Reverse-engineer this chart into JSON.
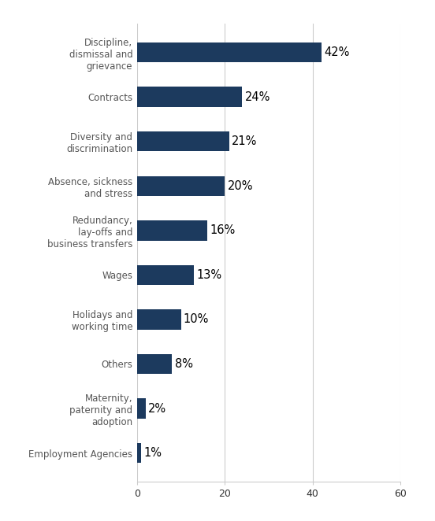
{
  "categories": [
    "Employment Agencies",
    "Maternity,\npaternity and\nadoption",
    "Others",
    "Holidays and\nworking time",
    "Wages",
    "Redundancy,\nlay-offs and\nbusiness transfers",
    "Absence, sickness\nand stress",
    "Diversity and\ndiscrimination",
    "Contracts",
    "Discipline,\ndismissal and\ngrievance"
  ],
  "values": [
    1,
    2,
    8,
    10,
    13,
    16,
    20,
    21,
    24,
    42
  ],
  "bar_color": "#1c3a5e",
  "label_color": "#555555",
  "background_color": "#ffffff",
  "plot_background": "#ffffff",
  "grid_color": "#cccccc",
  "xlim": [
    0,
    60
  ],
  "xticks": [
    0,
    20,
    40,
    60
  ],
  "bar_height": 0.45,
  "figsize": [
    5.52,
    6.62
  ],
  "dpi": 100,
  "label_fontsize": 8.5,
  "tick_fontsize": 9.0,
  "value_fontsize": 10.5
}
